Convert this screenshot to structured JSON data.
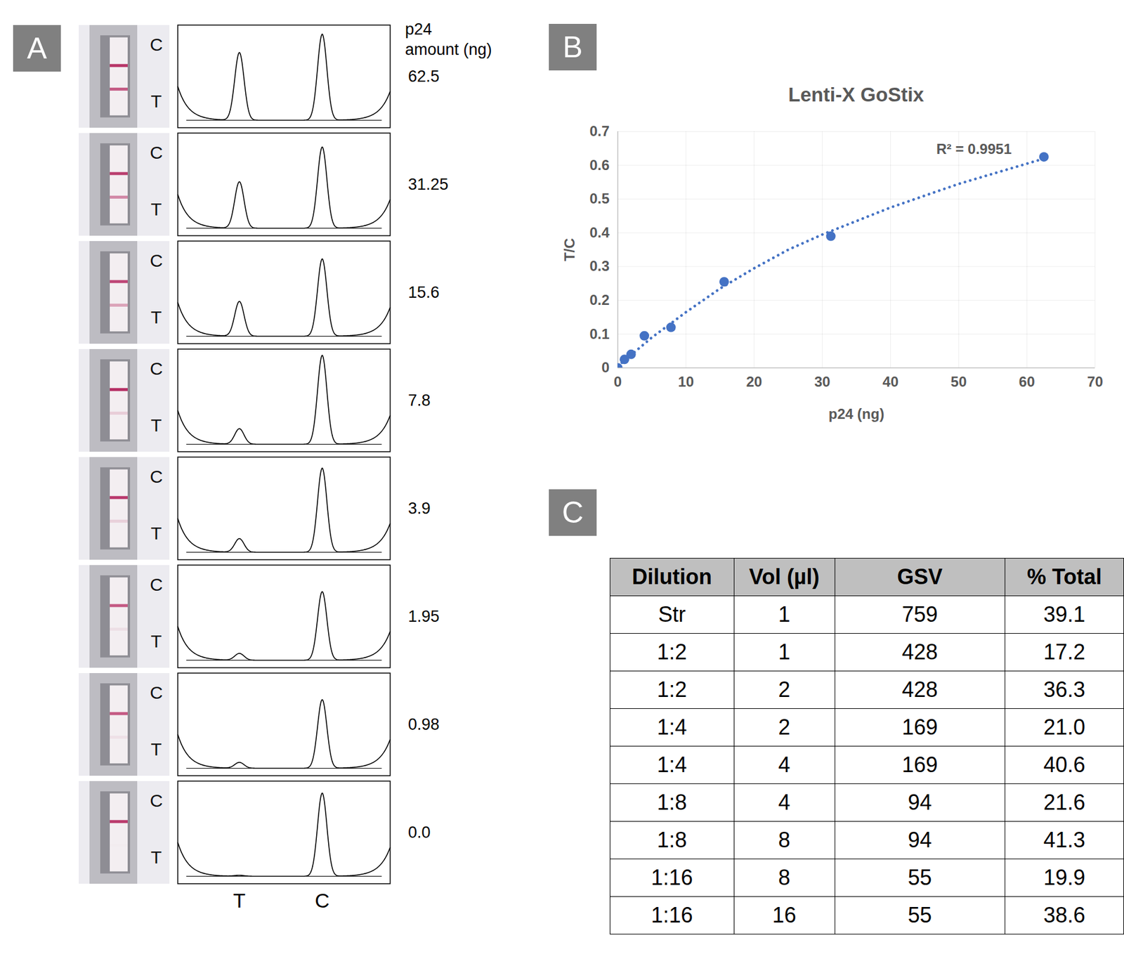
{
  "panel_letters": [
    "A",
    "B",
    "C"
  ],
  "panel_a": {
    "amount_header": [
      "p24",
      "amount (ng)"
    ],
    "strip_labels": [
      "C",
      "T"
    ],
    "trace_axis_labels": [
      "T",
      "C"
    ],
    "amounts": [
      "62.5",
      "31.25",
      "15.6",
      "7.8",
      "3.9",
      "1.95",
      "0.98",
      "0.0"
    ],
    "trace_peaks": {
      "T": [
        0.7,
        0.48,
        0.36,
        0.16,
        0.14,
        0.07,
        0.06,
        0.01
      ],
      "C": [
        0.89,
        0.84,
        0.8,
        0.92,
        0.87,
        0.71,
        0.71,
        0.86
      ]
    }
  },
  "chart_data": {
    "type": "scatter",
    "title": "Lenti-X GoStix",
    "x_label": "p24 (ng)",
    "y_label": "T/C",
    "x": [
      0,
      0.98,
      1.95,
      3.9,
      7.8,
      15.6,
      31.25,
      62.5
    ],
    "values": [
      0,
      0.025,
      0.04,
      0.095,
      0.12,
      0.255,
      0.39,
      0.625
    ],
    "color": "#4472c4",
    "marker": "circle",
    "xlim": [
      0,
      70
    ],
    "xticks": [
      0,
      10,
      20,
      30,
      40,
      50,
      60,
      70
    ],
    "ylim": [
      0,
      0.7
    ],
    "yticks": [
      0,
      0.1,
      0.2,
      0.3,
      0.4,
      0.5,
      0.6,
      0.7
    ],
    "grid": true,
    "trendline": {
      "x": [
        0,
        5,
        10,
        15,
        20,
        25,
        30,
        35,
        40,
        45,
        50,
        55,
        60,
        62.5
      ],
      "values": [
        0.005,
        0.09,
        0.165,
        0.235,
        0.295,
        0.35,
        0.395,
        0.435,
        0.475,
        0.51,
        0.545,
        0.575,
        0.605,
        0.62
      ],
      "line_style": "dotted",
      "annotation": "R² = 0.9951"
    }
  },
  "panel_c": {
    "table": {
      "header": [
        "Dilution",
        "Vol (µl)",
        "GSV",
        "% Total"
      ],
      "rows": [
        [
          "Str",
          "1",
          "759",
          "39.1"
        ],
        [
          "1:2",
          "1",
          "428",
          "17.2"
        ],
        [
          "1:2",
          "2",
          "428",
          "36.3"
        ],
        [
          "1:4",
          "2",
          "169",
          "21.0"
        ],
        [
          "1:4",
          "4",
          "169",
          "40.6"
        ],
        [
          "1:8",
          "4",
          "94",
          "21.6"
        ],
        [
          "1:8",
          "8",
          "94",
          "41.3"
        ],
        [
          "1:16",
          "8",
          "55",
          "19.9"
        ],
        [
          "1:16",
          "16",
          "55",
          "38.6"
        ]
      ]
    }
  }
}
